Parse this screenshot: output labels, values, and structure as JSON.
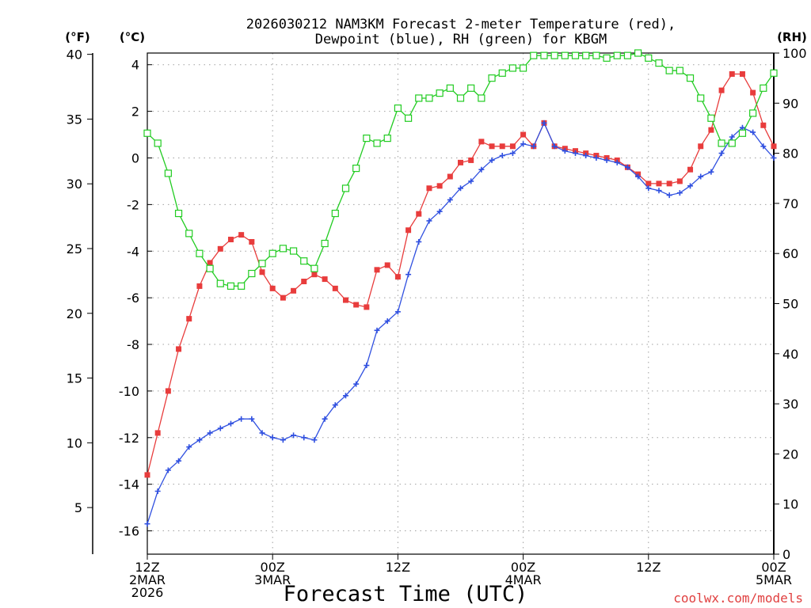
{
  "chart_data": {
    "type": "line",
    "title_line1": "2026030212 NAM3KM Forecast 2-meter Temperature (red),",
    "title_line2": "Dewpoint (blue), RH (green) for KBGM",
    "xlabel": "Forecast Time (UTC)",
    "credit": "coolwx.com/models",
    "units": {
      "fahrenheit": "(°F)",
      "celsius": "(°C)",
      "rh": "(RH)"
    },
    "x_range_hours": [
      0,
      60
    ],
    "x_ticks": [
      {
        "hour": 0,
        "lines": [
          "12Z",
          "2MAR",
          "2026"
        ]
      },
      {
        "hour": 12,
        "lines": [
          "00Z",
          "3MAR"
        ]
      },
      {
        "hour": 24,
        "lines": [
          "12Z"
        ]
      },
      {
        "hour": 36,
        "lines": [
          "00Z",
          "4MAR"
        ]
      },
      {
        "hour": 48,
        "lines": [
          "12Z"
        ]
      },
      {
        "hour": 60,
        "lines": [
          "00Z",
          "5MAR"
        ]
      }
    ],
    "celsius_axis": {
      "range": [
        -17,
        4.5
      ],
      "ticks": [
        4,
        2,
        0,
        -2,
        -4,
        -6,
        -8,
        -10,
        -12,
        -14,
        -16
      ]
    },
    "fahrenheit_axis": {
      "ticks": [
        40,
        35,
        30,
        25,
        20,
        15,
        10,
        5
      ]
    },
    "rh_axis": {
      "range": [
        0,
        100
      ],
      "ticks": [
        100,
        90,
        80,
        70,
        60,
        50,
        40,
        30,
        20,
        10,
        0
      ]
    },
    "hours": [
      0,
      1,
      2,
      3,
      4,
      5,
      6,
      7,
      8,
      9,
      10,
      11,
      12,
      13,
      14,
      15,
      16,
      17,
      18,
      19,
      20,
      21,
      22,
      23,
      24,
      25,
      26,
      27,
      28,
      29,
      30,
      31,
      32,
      33,
      34,
      35,
      36,
      37,
      38,
      39,
      40,
      41,
      42,
      43,
      44,
      45,
      46,
      47,
      48,
      49,
      50,
      51,
      52,
      53,
      54,
      55,
      56,
      57,
      58,
      59,
      60
    ],
    "series": [
      {
        "name": "Temperature",
        "unit": "C",
        "color": "#e83c3c",
        "marker": "filled-square",
        "values": [
          -13.6,
          -11.8,
          -10.0,
          -8.2,
          -6.9,
          -5.5,
          -4.5,
          -3.9,
          -3.5,
          -3.3,
          -3.6,
          -4.9,
          -5.6,
          -6.0,
          -5.7,
          -5.3,
          -5.0,
          -5.2,
          -5.6,
          -6.1,
          -6.3,
          -6.4,
          -4.8,
          -4.6,
          -5.1,
          -3.1,
          -2.4,
          -1.3,
          -1.2,
          -0.8,
          -0.2,
          -0.1,
          0.7,
          0.5,
          0.5,
          0.5,
          1.0,
          0.5,
          1.5,
          0.5,
          0.4,
          0.3,
          0.2,
          0.1,
          0.0,
          -0.1,
          -0.4,
          -0.7,
          -1.1,
          -1.1,
          -1.1,
          -1.0,
          -0.5,
          0.5,
          1.2,
          2.9,
          3.6,
          3.6,
          2.8,
          1.4,
          0.5
        ]
      },
      {
        "name": "Dewpoint",
        "unit": "C",
        "color": "#3050e0",
        "marker": "plus",
        "values": [
          -15.7,
          -14.3,
          -13.4,
          -13.0,
          -12.4,
          -12.1,
          -11.8,
          -11.6,
          -11.4,
          -11.2,
          -11.2,
          -11.8,
          -12.0,
          -12.1,
          -11.9,
          -12.0,
          -12.1,
          -11.2,
          -10.6,
          -10.2,
          -9.7,
          -8.9,
          -7.4,
          -7.0,
          -6.6,
          -5.0,
          -3.6,
          -2.7,
          -2.3,
          -1.8,
          -1.3,
          -1.0,
          -0.5,
          -0.1,
          0.1,
          0.2,
          0.6,
          0.5,
          1.5,
          0.5,
          0.3,
          0.2,
          0.1,
          0.0,
          -0.1,
          -0.2,
          -0.4,
          -0.8,
          -1.3,
          -1.4,
          -1.6,
          -1.5,
          -1.2,
          -0.8,
          -0.6,
          0.2,
          0.9,
          1.3,
          1.1,
          0.5,
          0.0
        ]
      },
      {
        "name": "RH",
        "unit": "%",
        "color": "#22cc22",
        "marker": "open-square",
        "values": [
          84,
          82,
          76,
          68,
          64,
          60,
          57,
          54,
          53.5,
          53.5,
          56,
          58,
          60,
          61,
          60.5,
          58.5,
          57,
          62,
          68,
          73,
          77,
          83,
          82,
          83,
          89,
          87,
          91,
          91,
          92,
          93,
          91,
          93,
          91,
          95,
          96,
          97,
          97,
          99.5,
          99.5,
          99.5,
          99.5,
          99.5,
          99.5,
          99.5,
          99,
          99.5,
          99.5,
          100,
          99,
          98,
          96.5,
          96.5,
          95,
          91,
          87,
          82,
          82,
          84,
          88,
          93,
          96
        ]
      }
    ]
  }
}
